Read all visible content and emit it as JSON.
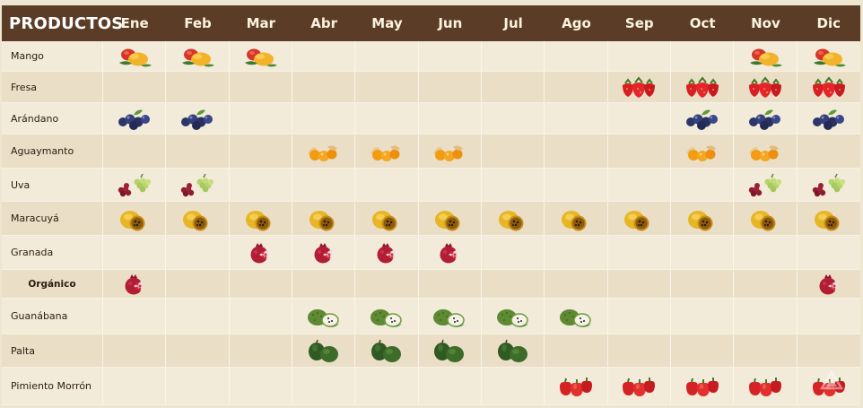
{
  "header": {
    "title": "PRODUCTOS",
    "months": [
      "Ene",
      "Feb",
      "Mar",
      "Abr",
      "May",
      "Jun",
      "Jul",
      "Ago",
      "Sep",
      "Oct",
      "Nov",
      "Dic"
    ]
  },
  "products": [
    {
      "name": "Mango",
      "icon": "mango-icon",
      "availability": [
        1,
        1,
        1,
        0,
        0,
        0,
        0,
        0,
        0,
        0,
        1,
        1
      ]
    },
    {
      "name": "Fresa",
      "icon": "strawberry-icon",
      "availability": [
        0,
        0,
        0,
        0,
        0,
        0,
        0,
        0,
        1,
        1,
        1,
        1
      ]
    },
    {
      "name": "Arándano",
      "icon": "blueberry-icon",
      "availability": [
        1,
        1,
        0,
        0,
        0,
        0,
        0,
        0,
        0,
        1,
        1,
        1
      ]
    },
    {
      "name": "Aguaymanto",
      "icon": "goldenberry-icon",
      "availability": [
        0,
        0,
        0,
        1,
        1,
        1,
        0,
        0,
        0,
        1,
        1,
        0
      ]
    },
    {
      "name": "Uva",
      "icon": "grape-icon",
      "availability": [
        1,
        1,
        0,
        0,
        0,
        0,
        0,
        0,
        0,
        0,
        1,
        1
      ]
    },
    {
      "name": "Maracuyá",
      "icon": "passionfruit-icon",
      "availability": [
        1,
        1,
        1,
        1,
        1,
        1,
        1,
        1,
        1,
        1,
        1,
        1
      ]
    },
    {
      "name": "Granada",
      "icon": "pomegranate-icon",
      "availability": [
        0,
        0,
        1,
        1,
        1,
        1,
        0,
        0,
        0,
        0,
        0,
        0
      ]
    },
    {
      "name": "Orgánico",
      "icon": "pomegranate-icon",
      "sub": true,
      "availability": [
        1,
        0,
        0,
        0,
        0,
        0,
        0,
        0,
        0,
        0,
        0,
        1
      ]
    },
    {
      "name": "Guanábana",
      "icon": "soursop-icon",
      "availability": [
        0,
        0,
        0,
        1,
        1,
        1,
        1,
        1,
        0,
        0,
        0,
        0
      ]
    },
    {
      "name": "Palta",
      "icon": "avocado-icon",
      "availability": [
        0,
        0,
        0,
        1,
        1,
        1,
        1,
        0,
        0,
        0,
        0,
        0
      ]
    },
    {
      "name": "Pimiento Morrón",
      "icon": "bell-pepper-icon",
      "availability": [
        0,
        0,
        0,
        0,
        0,
        0,
        0,
        1,
        1,
        1,
        1,
        1
      ]
    }
  ],
  "colors": {
    "header_bg": "#5b3d27",
    "row_light": "#f3ebda",
    "row_dark": "#eadfc6"
  }
}
